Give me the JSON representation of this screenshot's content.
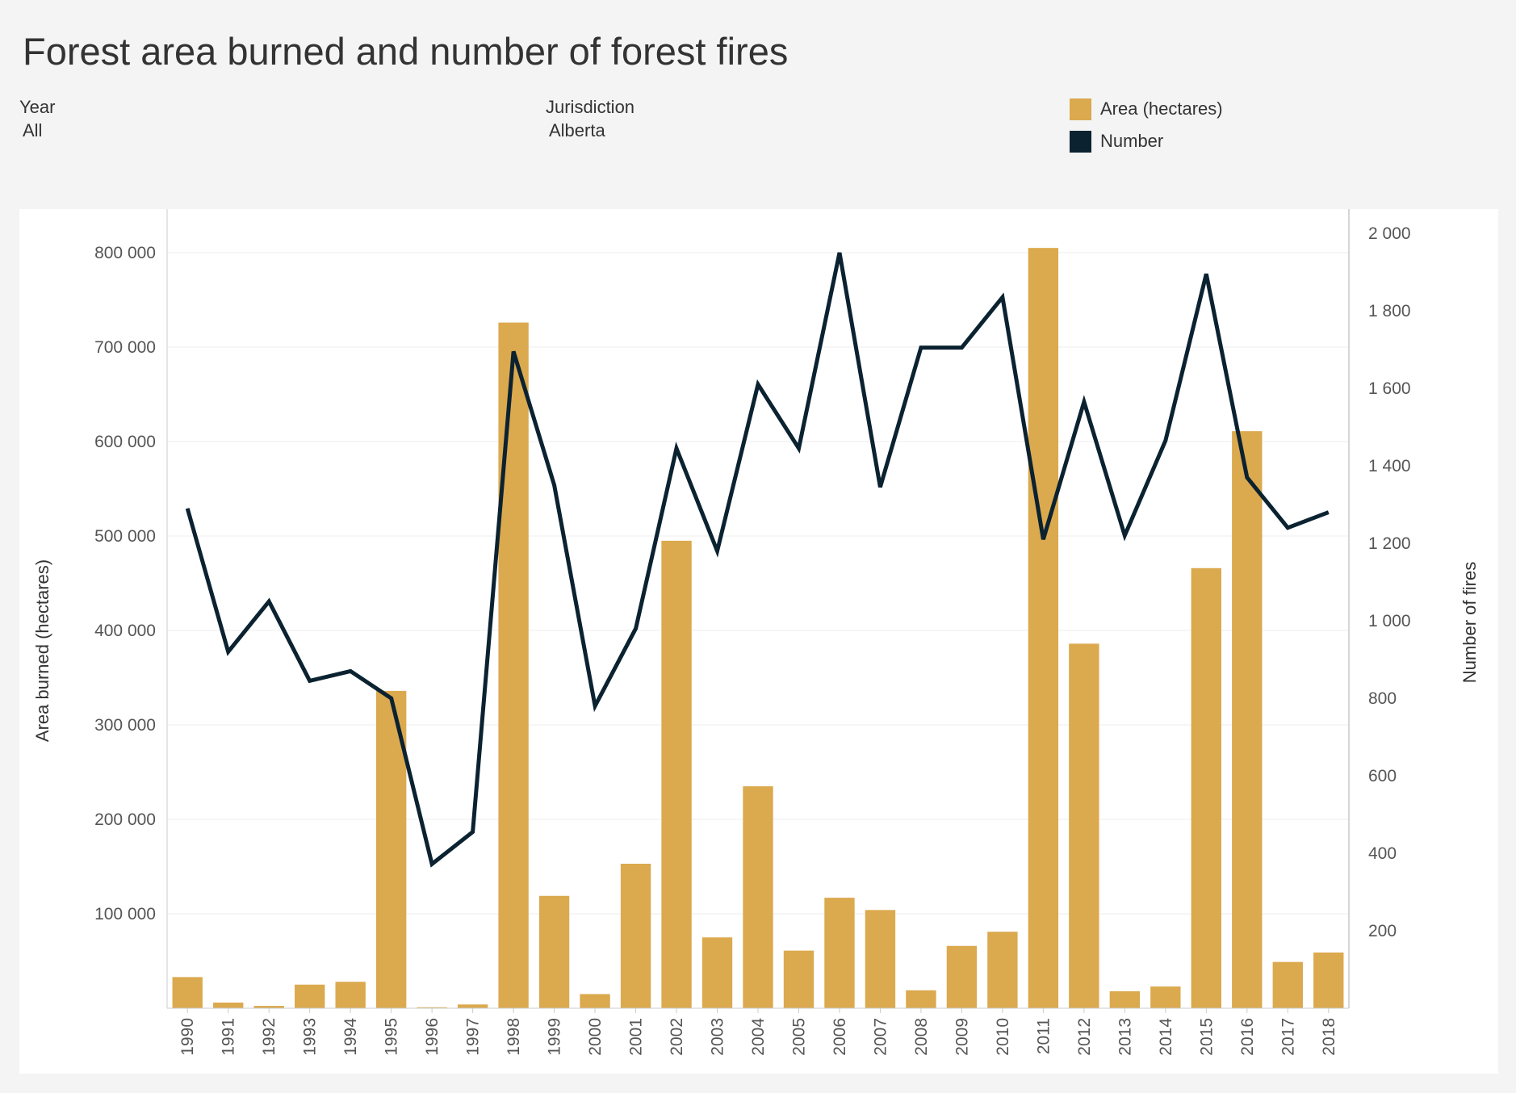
{
  "title": "Forest area burned and number of forest fires",
  "filters": {
    "year": {
      "label": "Year",
      "value": "All"
    },
    "jurisdiction": {
      "label": "Jurisdiction",
      "value": "Alberta"
    }
  },
  "legend": [
    {
      "label": "Area (hectares)",
      "color": "#dba94e"
    },
    {
      "label": "Number",
      "color": "#0b2231"
    }
  ],
  "chart_data": {
    "type": "bar",
    "title": "Forest area burned and number of forest fires",
    "categories": [
      "1990",
      "1991",
      "1992",
      "1993",
      "1994",
      "1995",
      "1996",
      "1997",
      "1998",
      "1999",
      "2000",
      "2001",
      "2002",
      "2003",
      "2004",
      "2005",
      "2006",
      "2007",
      "2008",
      "2009",
      "2010",
      "2011",
      "2012",
      "2013",
      "2014",
      "2015",
      "2016",
      "2017",
      "2018"
    ],
    "series": [
      {
        "name": "Area (hectares)",
        "type": "bar",
        "axis": "left",
        "color": "#dba94e",
        "values": [
          33000,
          6000,
          2500,
          25000,
          28000,
          336000,
          1000,
          4000,
          726000,
          119000,
          15000,
          153000,
          495000,
          75000,
          235000,
          61000,
          117000,
          104000,
          19000,
          66000,
          81000,
          805000,
          386000,
          18000,
          23000,
          466000,
          611000,
          49000,
          59000
        ]
      },
      {
        "name": "Number",
        "type": "line",
        "axis": "right",
        "color": "#0b2231",
        "values": [
          1290,
          920,
          1050,
          845,
          870,
          800,
          372,
          455,
          1695,
          1350,
          780,
          980,
          1445,
          1180,
          1610,
          1445,
          1950,
          1345,
          1705,
          1705,
          1835,
          1210,
          1565,
          1220,
          1465,
          1895,
          1370,
          1240,
          1280
        ]
      }
    ],
    "ylabel": "Area burned (hectares)",
    "y2label": "Number of fires",
    "ylim": [
      0,
      850000
    ],
    "y2lim": [
      0,
      2000
    ],
    "yticks": [
      100000,
      200000,
      300000,
      400000,
      500000,
      600000,
      700000,
      800000
    ],
    "ytick_labels": [
      "100 000",
      "200 000",
      "300 000",
      "400 000",
      "500 000",
      "600 000",
      "700 000",
      "800 000"
    ],
    "y2ticks": [
      200,
      400,
      600,
      800,
      1000,
      1200,
      1400,
      1600,
      1800,
      2000
    ],
    "y2tick_labels": [
      "200",
      "400",
      "600",
      "800",
      "1 000",
      "1 200",
      "1 400",
      "1 600",
      "1 800",
      "2 000"
    ],
    "grid": true,
    "legend_position": "top-right"
  }
}
